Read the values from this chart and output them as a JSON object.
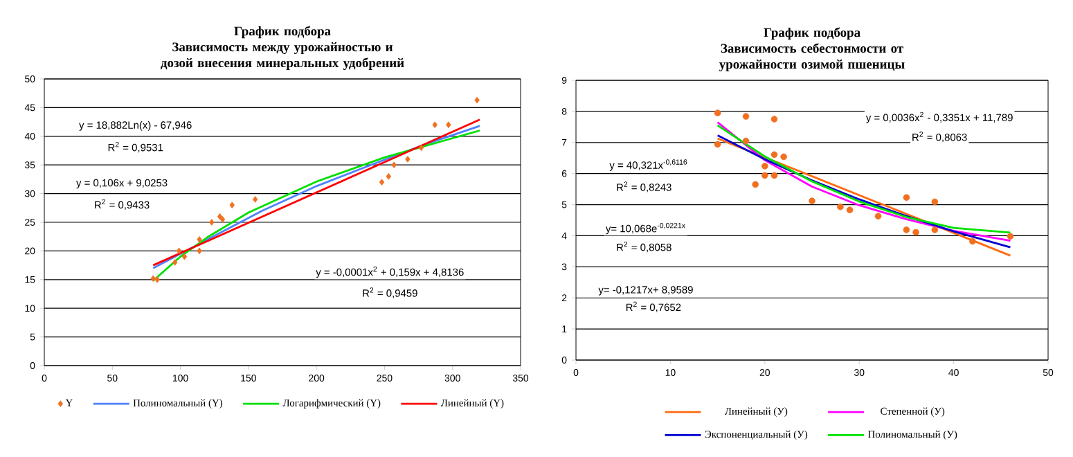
{
  "chart_data": [
    {
      "type": "line",
      "title": "График подбора",
      "subtitle": "Зависимость между урожайностью и дозой внесения минеральных удобрений",
      "xlim": [
        0,
        350
      ],
      "xticks": [
        0,
        50,
        100,
        150,
        200,
        250,
        300,
        350
      ],
      "ylim": [
        0,
        50
      ],
      "yticks": [
        0,
        5,
        10,
        15,
        20,
        25,
        30,
        35,
        40,
        45,
        50
      ],
      "grid": "y",
      "legend": "bottom",
      "annotations": [
        "y = 18,882Ln(x) - 67,946",
        "R$^{2}$ = 0,9531",
        "y = 0,106x + 9,0253",
        "R$^{2}$ = 0,9433",
        "y = -0,0001x$^{2}$ + 0,159x + 4,8136",
        "R$^{2}$ = 0,9459"
      ],
      "series": [
        {
          "name": "Y",
          "type": "scatter",
          "marker": "diamond",
          "color": "#f07020",
          "x": [
            80,
            83,
            96,
            99,
            103,
            114,
            114,
            123,
            129,
            131,
            138,
            155,
            248,
            253,
            257,
            267,
            277,
            287,
            297,
            318
          ],
          "values": [
            15.2,
            15,
            18,
            20,
            19,
            22,
            20,
            25,
            26,
            25.5,
            28,
            29,
            32,
            33,
            35,
            36,
            38,
            42,
            42,
            46.3
          ]
        },
        {
          "name": "Полиномальный (Y)",
          "color": "#4f81ff",
          "x": [
            80,
            120,
            160,
            200,
            240,
            280,
            320
          ],
          "values": [
            17,
            22,
            27,
            31.3,
            35,
            38.6,
            41.8
          ]
        },
        {
          "name": "Логарифмический (Y)",
          "color": "#00e000",
          "x": [
            80,
            100,
            120,
            150,
            200,
            250,
            320
          ],
          "values": [
            14.8,
            19,
            22.4,
            26.7,
            32.1,
            36.3,
            41
          ]
        },
        {
          "name": "Линейный (Y)",
          "color": "#ff0000",
          "x": [
            80,
            320
          ],
          "values": [
            17.5,
            42.9
          ]
        }
      ]
    },
    {
      "type": "line",
      "title": "График подбора",
      "subtitle": "Зависимость себестонмости от урожайности озимой пшеницы",
      "xlim": [
        0,
        50
      ],
      "xticks": [
        0,
        10,
        20,
        30,
        40,
        50
      ],
      "ylim": [
        0,
        9
      ],
      "yticks": [
        0,
        1,
        2,
        3,
        4,
        5,
        6,
        7,
        8,
        9
      ],
      "grid": "y",
      "legend": "bottom",
      "annotations": [
        "y = 0,0036x$^{2}$ - 0,3351x + 11,789",
        "R$^{2}$ = 0,8063",
        "y = 40,321x$^{-0,6116}$",
        "R$^{2}$ = 0,8243",
        "y= 10,068e$^{-0,0221x}$",
        "R$^{2}$ = 0,8058",
        "y= -0,1217x+ 8,9589",
        "R$^{2}$ = 0,7652"
      ],
      "series": [
        {
          "type": "scatter",
          "marker": "circle",
          "color": "#f07020",
          "x": [
            15,
            15,
            18,
            18,
            21,
            21,
            22,
            20,
            20,
            21,
            19,
            25,
            28,
            29,
            32,
            35,
            35,
            36,
            38,
            38,
            42,
            46
          ],
          "values": [
            7.95,
            6.94,
            7.84,
            7.05,
            7.75,
            6.61,
            6.54,
            6.24,
            5.94,
            5.94,
            5.65,
            5.12,
            4.93,
            4.83,
            4.63,
            5.23,
            4.19,
            4.11,
            5.09,
            4.19,
            3.82,
            3.98
          ]
        },
        {
          "name": "Линейный (У)",
          "color": "#ff6a10",
          "x": [
            15,
            46
          ],
          "values": [
            7.13,
            3.36
          ]
        },
        {
          "name": "Степенной (У)",
          "color": "#ff00ff",
          "x": [
            15,
            20,
            25,
            30,
            35,
            40,
            46
          ],
          "values": [
            7.65,
            6.43,
            5.58,
            4.98,
            4.53,
            4.16,
            3.84
          ]
        },
        {
          "name": "Экспоненциальный (У)",
          "color": "#0000d0",
          "x": [
            15,
            20,
            25,
            30,
            35,
            40,
            46
          ],
          "values": [
            7.23,
            6.46,
            5.78,
            5.17,
            4.63,
            4.14,
            3.63
          ]
        },
        {
          "name": "Полиномальный (У)",
          "color": "#00e000",
          "x": [
            15,
            20,
            25,
            30,
            35,
            40,
            46
          ],
          "values": [
            7.55,
            6.55,
            5.75,
            5.1,
            4.6,
            4.25,
            4.1
          ]
        }
      ]
    }
  ]
}
